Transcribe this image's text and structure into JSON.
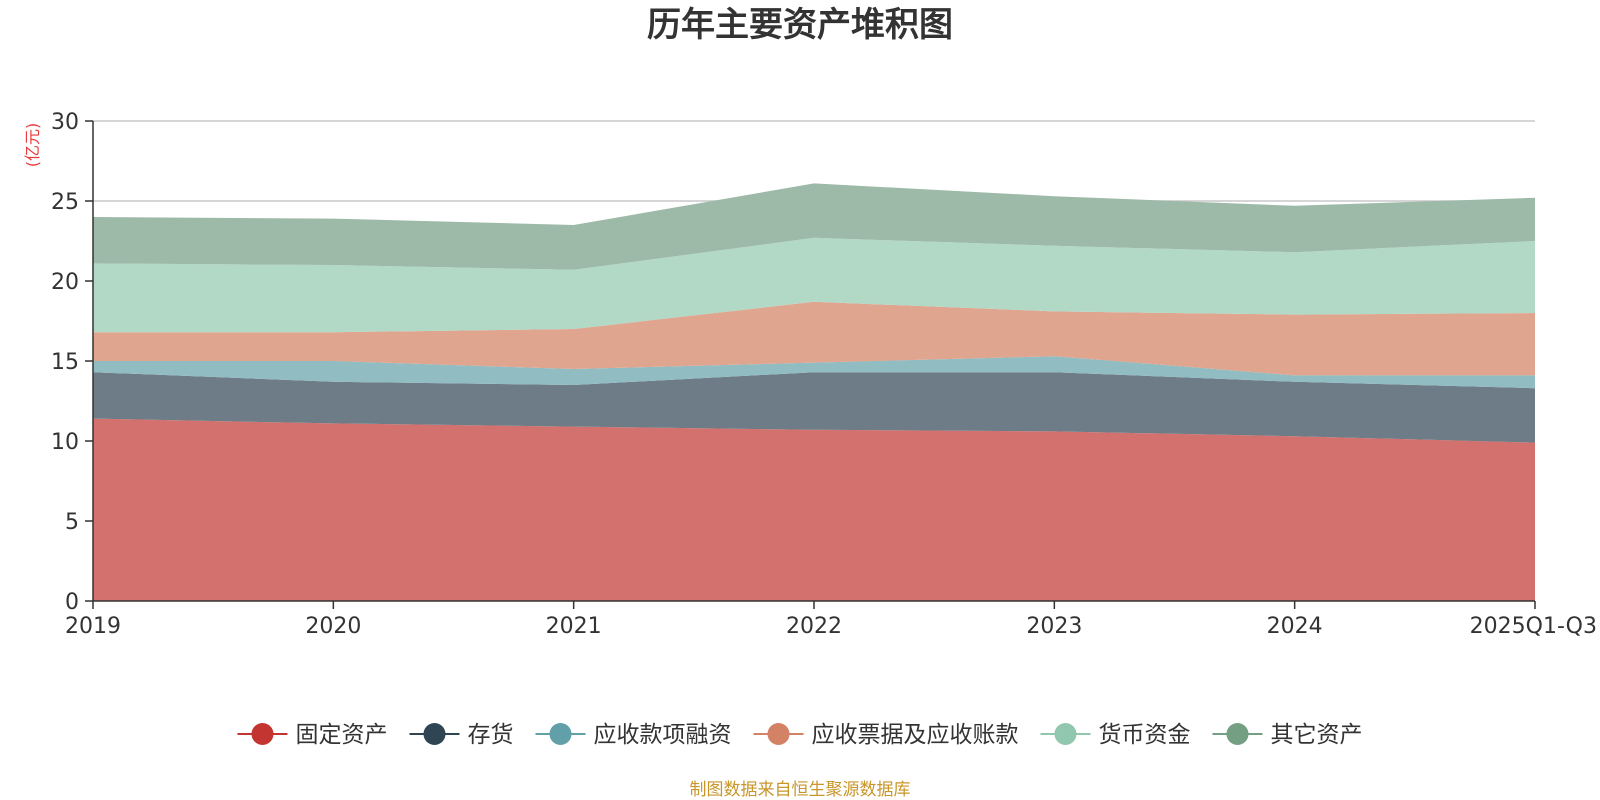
{
  "chart_data": {
    "type": "area",
    "stacked": true,
    "title": "历年主要资产堆积图",
    "y_unit": "(亿元)",
    "categories": [
      "2019",
      "2020",
      "2021",
      "2022",
      "2023",
      "2024",
      "2025Q1-Q3"
    ],
    "ylim": [
      0,
      30
    ],
    "yticks": [
      0,
      5,
      10,
      15,
      20,
      25,
      30
    ],
    "grid": true,
    "legend_position": "bottom",
    "series": [
      {
        "name": "固定资产",
        "color": "#c23531",
        "fill": "#d3716e",
        "values": [
          11.4,
          11.1,
          10.9,
          10.7,
          10.6,
          10.3,
          9.9
        ]
      },
      {
        "name": "存货",
        "color": "#2f4554",
        "fill": "#6e7c87",
        "values": [
          2.9,
          2.6,
          2.6,
          3.6,
          3.7,
          3.4,
          3.4
        ]
      },
      {
        "name": "应收款项融资",
        "color": "#61a0a8",
        "fill": "#90bcc2",
        "values": [
          0.7,
          1.3,
          1.0,
          0.6,
          1.0,
          0.4,
          0.8
        ]
      },
      {
        "name": "应收票据及应收账款",
        "color": "#d48265",
        "fill": "#e0a58f",
        "values": [
          1.8,
          1.8,
          2.5,
          3.8,
          2.8,
          3.8,
          3.9
        ]
      },
      {
        "name": "货币资金",
        "color": "#91c7ae",
        "fill": "#b2d8c6",
        "values": [
          4.3,
          4.2,
          3.7,
          4.0,
          4.1,
          3.9,
          4.5
        ]
      },
      {
        "name": "其它资产",
        "color": "#749f83",
        "fill": "#9db9a7",
        "values": [
          2.9,
          2.9,
          2.8,
          3.4,
          3.1,
          2.9,
          2.7
        ]
      }
    ],
    "source_text": "制图数据来自恒生聚源数据库",
    "axis_color": "#333333",
    "grid_color": "#c8c8c8",
    "unit_color": "#e83b3b",
    "source_color": "#c8962a"
  }
}
